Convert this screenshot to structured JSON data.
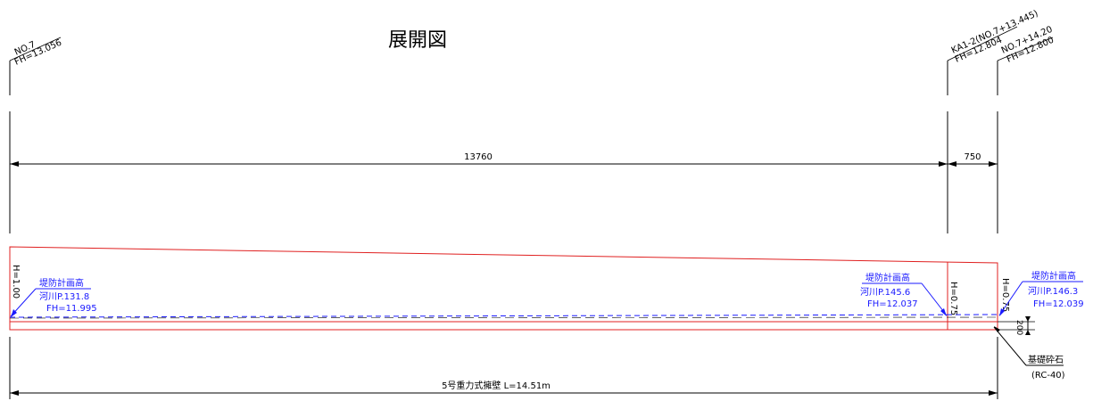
{
  "title": "展開図",
  "stations": {
    "left": {
      "name": "NO.7",
      "fh": "FH=13.056"
    },
    "mid": {
      "name": "KA1-2(NO.7+13.445)",
      "fh": "FH=12.804"
    },
    "right": {
      "name": "NO.7+14.20",
      "fh": "FH=12.800"
    }
  },
  "dimensions": {
    "span1": "13760",
    "span2": "750",
    "foundation_thickness": "200"
  },
  "heights": {
    "left": "H=1.00",
    "mid": "H=0.75",
    "right": "H=0.75"
  },
  "callouts": [
    {
      "title": "堤防計画高",
      "river": "河川P.131.8",
      "fh": "FH=11.995"
    },
    {
      "title": "堤防計画高",
      "river": "河川P.145.6",
      "fh": "FH=12.037"
    },
    {
      "title": "堤防計画高",
      "river": "河川P.146.3",
      "fh": "FH=12.039"
    }
  ],
  "foundation": {
    "label": "基礎砕石",
    "spec": "(RC-40)"
  },
  "total_label": "5号重力式擁壁  L=14.51m",
  "colors": {
    "wall": "#e02020",
    "annotation": "#1a1aff",
    "lines": "#000000"
  }
}
